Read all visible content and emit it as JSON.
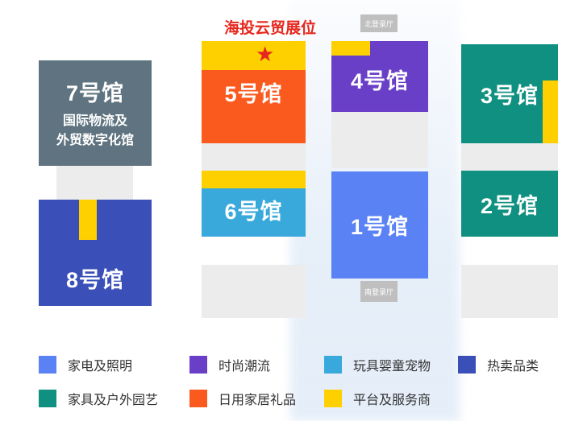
{
  "title": "海投云贸展位",
  "star_icon": "star",
  "colors": {
    "electrical": "#5a82f5",
    "fashion": "#6a3fc7",
    "toys": "#39a9dc",
    "hot": "#3a50b8",
    "furniture": "#0f9080",
    "daily": "#fb5a1f",
    "platform": "#ffd000",
    "international": "#5f7480"
  },
  "halls": {
    "h7": {
      "name": "7号馆",
      "sub1": "国际物流及",
      "sub2": "外贸数字化馆"
    },
    "h5": {
      "name": "5号馆"
    },
    "h4": {
      "name": "4号馆"
    },
    "h3": {
      "name": "3号馆"
    },
    "h6": {
      "name": "6号馆"
    },
    "h1": {
      "name": "1号馆"
    },
    "h2": {
      "name": "2号馆"
    },
    "h8": {
      "name": "8号馆"
    }
  },
  "entrances": {
    "north": "北登录厅",
    "south": "南登录厅"
  },
  "legend": [
    {
      "label": "家电及照明",
      "color": "#5a82f5"
    },
    {
      "label": "时尚潮流",
      "color": "#6a3fc7"
    },
    {
      "label": "玩具婴童宠物",
      "color": "#39a9dc"
    },
    {
      "label": "热卖品类",
      "color": "#3a50b8"
    },
    {
      "label": "家具及户外园艺",
      "color": "#0f9080"
    },
    {
      "label": "日用家居礼品",
      "color": "#fb5a1f"
    },
    {
      "label": "平台及服务商",
      "color": "#ffd000"
    }
  ]
}
